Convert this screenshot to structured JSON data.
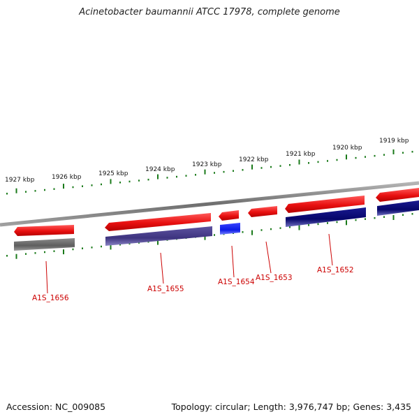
{
  "title": "Acinetobacter baumannii ATCC 17978, complete genome",
  "footer": {
    "accession": "Accession: NC_009085",
    "summary": "Topology: circular; Length: 3,976,747 bp; Genes: 3,435"
  },
  "scale_labels": [
    "1927 kbp",
    "1926 kbp",
    "1925 kbp",
    "1924 kbp",
    "1923 kbp",
    "1922 kbp",
    "1921 kbp",
    "1920 kbp",
    "1919 kbp"
  ],
  "gene_labels": [
    "A1S_1656",
    "A1S_1655",
    "A1S_1654",
    "A1S_1653",
    "A1S_1652"
  ],
  "colors": {
    "forward_strand": "#ee1111",
    "gene_grey": "#666666",
    "gene_purple": "#4a3f8c",
    "gene_blue": "#1020ee",
    "gene_navy": "#0a0a78",
    "tick": "#1a7a1a",
    "backbone": "#8a8a8a",
    "label": "#cc0000"
  }
}
